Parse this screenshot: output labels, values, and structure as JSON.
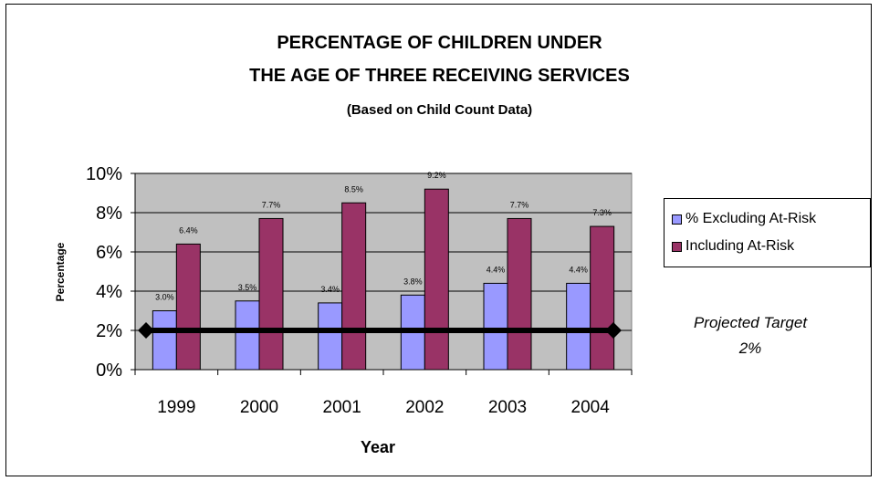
{
  "chart_data": {
    "type": "bar",
    "title": "PERCENTAGE OF CHILDREN UNDER",
    "title_line2": "THE AGE OF THREE RECEIVING SERVICES",
    "subtitle": "(Based on Child Count Data)",
    "xlabel": "Year",
    "ylabel": "Percentage",
    "categories": [
      "1999",
      "2000",
      "2001",
      "2002",
      "2003",
      "2004"
    ],
    "series": [
      {
        "name": "% Excluding At-Risk",
        "values": [
          3.0,
          3.5,
          3.4,
          3.8,
          4.4,
          4.4
        ],
        "labels": [
          "3.0%",
          "3.5%",
          "3.4%",
          "3.8%",
          "4.4%",
          "4.4%"
        ],
        "color": "#9999ff"
      },
      {
        "name": "Including At-Risk",
        "values": [
          6.4,
          7.7,
          8.5,
          9.2,
          7.7,
          7.3
        ],
        "labels": [
          "6.4%",
          "7.7%",
          "8.5%",
          "9.2%",
          "7.7%",
          "7.3%"
        ],
        "color": "#993366"
      }
    ],
    "target_line": {
      "value": 2,
      "color": "#000000"
    },
    "ylim": [
      0,
      10
    ],
    "yticks": [
      0,
      2,
      4,
      6,
      8,
      10
    ],
    "ytick_labels": [
      "0%",
      "2%",
      "4%",
      "6%",
      "8%",
      "10%"
    ],
    "grid": true,
    "plot_background": "#c0c0c0",
    "legend_position": "right"
  },
  "annotation": {
    "line1": "Projected Target",
    "line2": "2%"
  }
}
